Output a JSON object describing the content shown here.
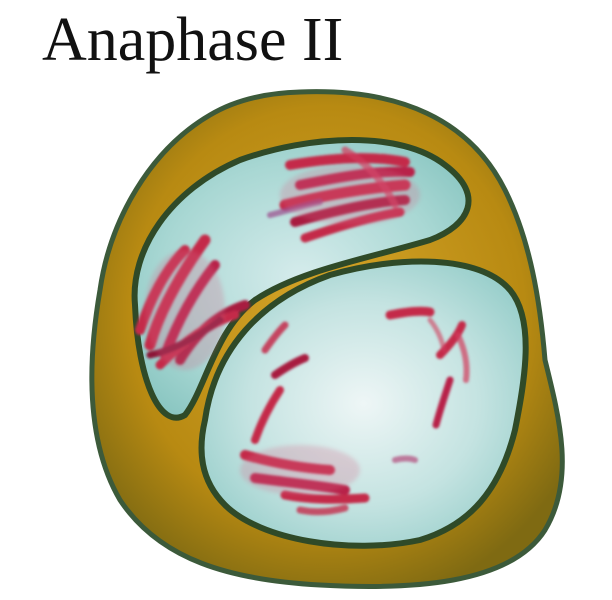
{
  "title": "Anaphase II",
  "colors": {
    "cell_wall": "#b88a12",
    "cell_wall_dark": "#2f4a28",
    "cytoplasm": "#a9d6d2",
    "cytoplasm_light": "#dbeeed",
    "chromosome": "#c42a4a",
    "chromosome_dark": "#8c1238"
  }
}
